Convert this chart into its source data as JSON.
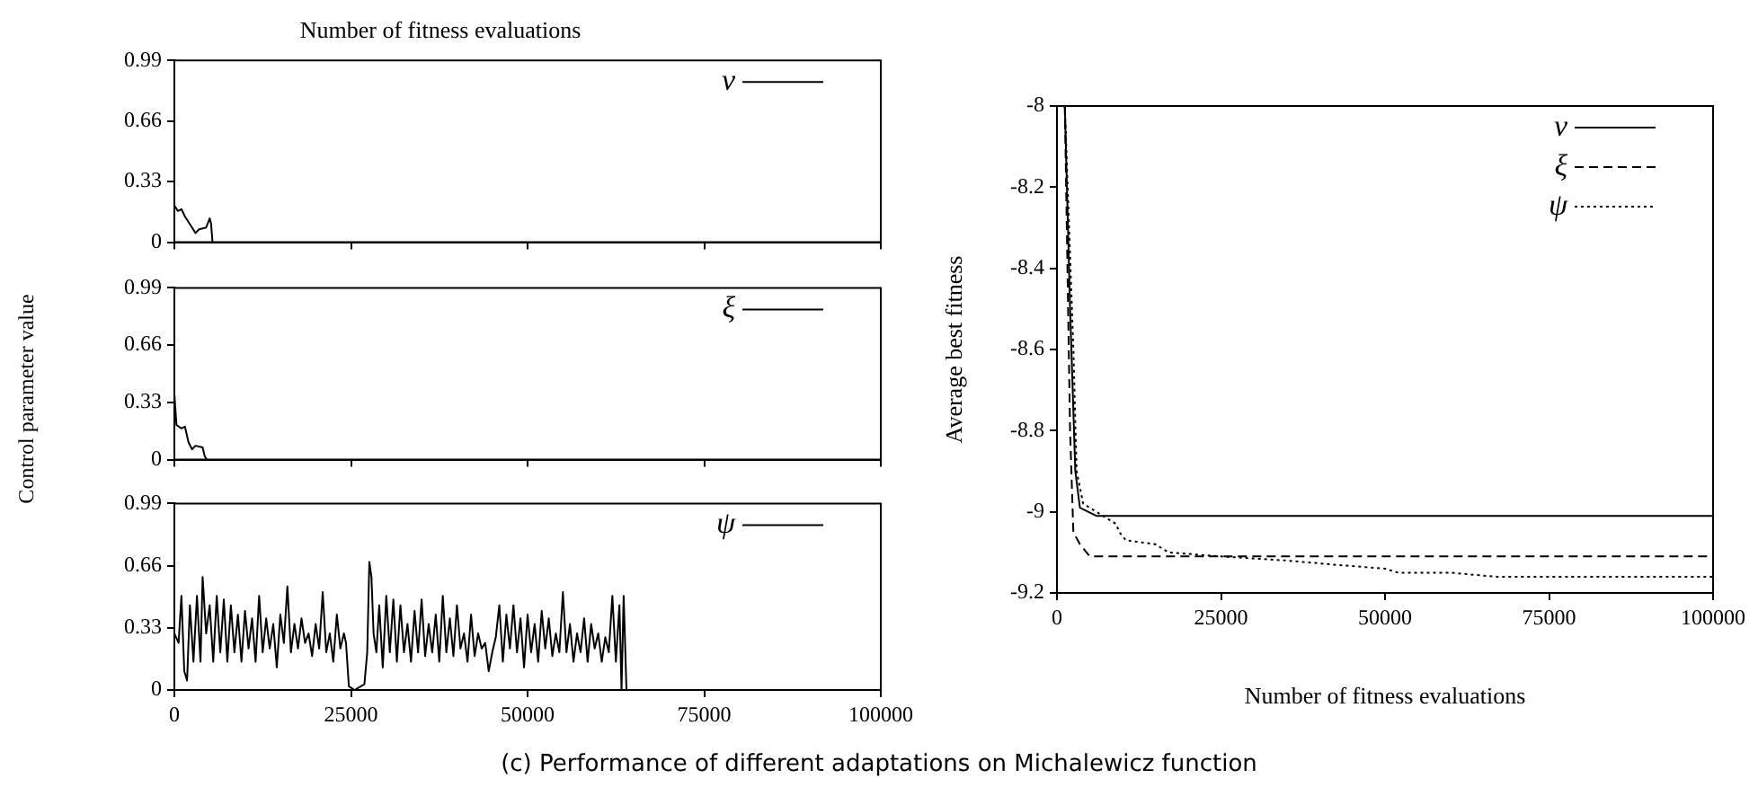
{
  "chart_data": [
    {
      "type": "line",
      "title": "Number of fitness evaluations",
      "xlim": [
        0,
        100000
      ],
      "xticks": [
        0,
        25000,
        50000,
        75000,
        100000
      ],
      "ylim": [
        0,
        0.99
      ],
      "yticks": [
        0,
        0.33,
        0.66,
        0.99
      ],
      "tick_labels": "y",
      "legend": "top right",
      "grid": false,
      "marker": "none",
      "series": [
        {
          "name": "ν",
          "color": "#000000",
          "line_style": "solid",
          "x": [
            0,
            500,
            1000,
            1500,
            2500,
            3000,
            3500,
            4500,
            5000,
            5200,
            5400
          ],
          "values": [
            0.2,
            0.17,
            0.18,
            0.14,
            0.08,
            0.05,
            0.07,
            0.08,
            0.13,
            0.1,
            0
          ]
        }
      ]
    },
    {
      "type": "line",
      "ylabel": "Control parameter value",
      "xlim": [
        0,
        100000
      ],
      "xticks": [
        0,
        25000,
        50000,
        75000,
        100000
      ],
      "ylim": [
        0,
        0.99
      ],
      "yticks": [
        0,
        0.33,
        0.66,
        0.99
      ],
      "tick_labels": "y",
      "legend": "top right",
      "grid": false,
      "marker": "none",
      "series": [
        {
          "name": "ξ",
          "color": "#000000",
          "line_style": "solid",
          "x": [
            0,
            300,
            1000,
            1500,
            2000,
            2500,
            3000,
            4000,
            4300,
            4600
          ],
          "values": [
            0.38,
            0.2,
            0.18,
            0.19,
            0.1,
            0.06,
            0.08,
            0.07,
            0.02,
            0
          ]
        }
      ]
    },
    {
      "type": "line",
      "xlim": [
        0,
        100000
      ],
      "xticks": [
        0,
        25000,
        50000,
        75000,
        100000
      ],
      "ylim": [
        0,
        0.99
      ],
      "yticks": [
        0,
        0.33,
        0.66,
        0.99
      ],
      "legend": "top right",
      "grid": false,
      "marker": "none",
      "series": [
        {
          "name": "ψ",
          "color": "#000000",
          "line_style": "solid",
          "x": [
            0,
            600,
            1000,
            1400,
            1800,
            2200,
            2700,
            3200,
            3700,
            4000,
            4500,
            5000,
            5500,
            6000,
            6500,
            7000,
            7500,
            8000,
            8500,
            9000,
            9500,
            10000,
            10500,
            11000,
            11500,
            12000,
            12500,
            13000,
            13500,
            14000,
            14500,
            15000,
            15500,
            16000,
            16500,
            17000,
            17500,
            18000,
            18500,
            19000,
            19500,
            20000,
            20500,
            21000,
            21500,
            22000,
            22500,
            23000,
            23500,
            24000,
            24300,
            24700,
            25500,
            26900,
            27300,
            27600,
            27900,
            28200,
            28600,
            29000,
            29500,
            30000,
            30500,
            31000,
            31500,
            32000,
            32500,
            33000,
            33500,
            34000,
            34500,
            35000,
            35500,
            36000,
            36500,
            37000,
            37500,
            38000,
            38500,
            39000,
            39500,
            40000,
            40500,
            41000,
            41500,
            42000,
            42500,
            43000,
            43500,
            44000,
            44500,
            45000,
            45500,
            46000,
            46500,
            47000,
            47500,
            48000,
            48500,
            49000,
            49500,
            50000,
            50500,
            51000,
            51500,
            52000,
            52500,
            53000,
            53500,
            54000,
            54500,
            55000,
            55500,
            56000,
            56500,
            57000,
            57500,
            58000,
            58500,
            59000,
            59500,
            60000,
            60500,
            61000,
            61500,
            62000,
            62500,
            63000,
            63300,
            63600,
            64000
          ],
          "values": [
            0.3,
            0.25,
            0.5,
            0.1,
            0.05,
            0.45,
            0.15,
            0.5,
            0.15,
            0.6,
            0.3,
            0.45,
            0.15,
            0.5,
            0.2,
            0.48,
            0.15,
            0.45,
            0.2,
            0.4,
            0.15,
            0.42,
            0.22,
            0.38,
            0.15,
            0.5,
            0.2,
            0.38,
            0.22,
            0.35,
            0.12,
            0.4,
            0.25,
            0.55,
            0.2,
            0.35,
            0.22,
            0.38,
            0.25,
            0.3,
            0.18,
            0.35,
            0.22,
            0.52,
            0.2,
            0.3,
            0.15,
            0.4,
            0.22,
            0.3,
            0.25,
            0.02,
            0,
            0.03,
            0.2,
            0.68,
            0.6,
            0.3,
            0.2,
            0.45,
            0.12,
            0.5,
            0.2,
            0.48,
            0.15,
            0.45,
            0.2,
            0.35,
            0.15,
            0.42,
            0.2,
            0.48,
            0.18,
            0.35,
            0.2,
            0.4,
            0.15,
            0.5,
            0.2,
            0.38,
            0.18,
            0.45,
            0.22,
            0.3,
            0.15,
            0.4,
            0.18,
            0.3,
            0.22,
            0.25,
            0.1,
            0.2,
            0.28,
            0.45,
            0.15,
            0.4,
            0.22,
            0.45,
            0.2,
            0.38,
            0.12,
            0.4,
            0.2,
            0.35,
            0.15,
            0.42,
            0.22,
            0.38,
            0.18,
            0.3,
            0.2,
            0.52,
            0.2,
            0.35,
            0.15,
            0.3,
            0.2,
            0.38,
            0.15,
            0.35,
            0.22,
            0.3,
            0.15,
            0.28,
            0.2,
            0.5,
            0.15,
            0.45,
            0,
            0.5,
            0
          ]
        }
      ]
    },
    {
      "type": "line",
      "xlabel": "Number of fitness evaluations",
      "ylabel": "Average best fitness",
      "xlim": [
        0,
        100000
      ],
      "xticks": [
        0,
        25000,
        50000,
        75000,
        100000
      ],
      "ylim": [
        -9.2,
        -8
      ],
      "yticks": [
        -9.2,
        -9,
        -8.8,
        -8.6,
        -8.4,
        -8.2,
        -8
      ],
      "legend": "top right",
      "grid": false,
      "marker": "none",
      "annotations": [
        "(c) Performance of different adaptations on Michalewicz function"
      ],
      "series": [
        {
          "name": "ν",
          "color": "#000000",
          "line_style": "solid",
          "x": [
            1200,
            2000,
            2800,
            3500,
            6000,
            8000,
            100000
          ],
          "values": [
            -8,
            -8.5,
            -8.9,
            -8.99,
            -9.01,
            -9.01,
            -9.01
          ]
        },
        {
          "name": "ξ",
          "color": "#000000",
          "line_style": "dashed",
          "x": [
            1200,
            2000,
            2500,
            3500,
            5000,
            100000
          ],
          "values": [
            -8,
            -8.8,
            -9.05,
            -9.08,
            -9.11,
            -9.11
          ]
        },
        {
          "name": "ψ",
          "color": "#000000",
          "line_style": "dotted",
          "x": [
            1200,
            2500,
            3000,
            4000,
            6000,
            8000,
            9000,
            9500,
            10500,
            15000,
            17000,
            25000,
            35000,
            42000,
            50000,
            52000,
            60000,
            67000,
            100000
          ],
          "values": [
            -8,
            -8.6,
            -8.9,
            -8.98,
            -9,
            -9.02,
            -9.03,
            -9.05,
            -9.07,
            -9.08,
            -9.1,
            -9.11,
            -9.12,
            -9.13,
            -9.14,
            -9.15,
            -9.15,
            -9.16,
            -9.16
          ]
        }
      ]
    }
  ]
}
